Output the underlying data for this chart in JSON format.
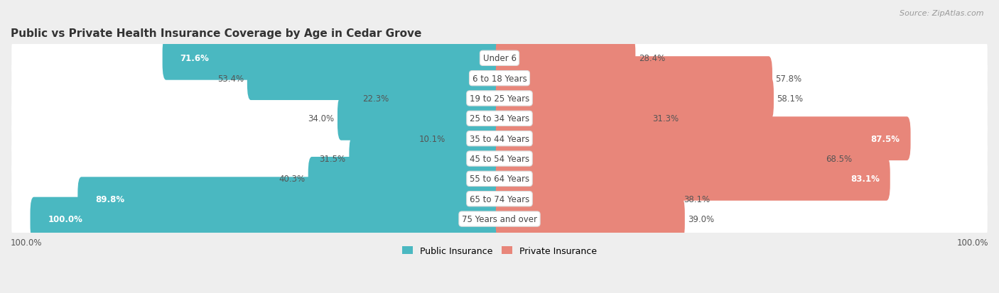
{
  "title": "Public vs Private Health Insurance Coverage by Age in Cedar Grove",
  "source": "Source: ZipAtlas.com",
  "categories": [
    "Under 6",
    "6 to 18 Years",
    "19 to 25 Years",
    "25 to 34 Years",
    "35 to 44 Years",
    "45 to 54 Years",
    "55 to 64 Years",
    "65 to 74 Years",
    "75 Years and over"
  ],
  "public_values": [
    71.6,
    53.4,
    22.3,
    34.0,
    10.1,
    31.5,
    40.3,
    89.8,
    100.0
  ],
  "private_values": [
    28.4,
    57.8,
    58.1,
    31.3,
    87.5,
    68.5,
    83.1,
    38.1,
    39.0
  ],
  "public_color": "#4ab8c1",
  "private_color": "#e8867a",
  "background_color": "#eeeeee",
  "row_bg_color": "#ffffff",
  "row_alt_bg_color": "#f5f5f5",
  "title_fontsize": 11,
  "label_fontsize": 8.5,
  "category_fontsize": 8.5,
  "legend_fontsize": 9,
  "source_fontsize": 8,
  "public_inside_threshold": 60,
  "private_inside_threshold": 70
}
